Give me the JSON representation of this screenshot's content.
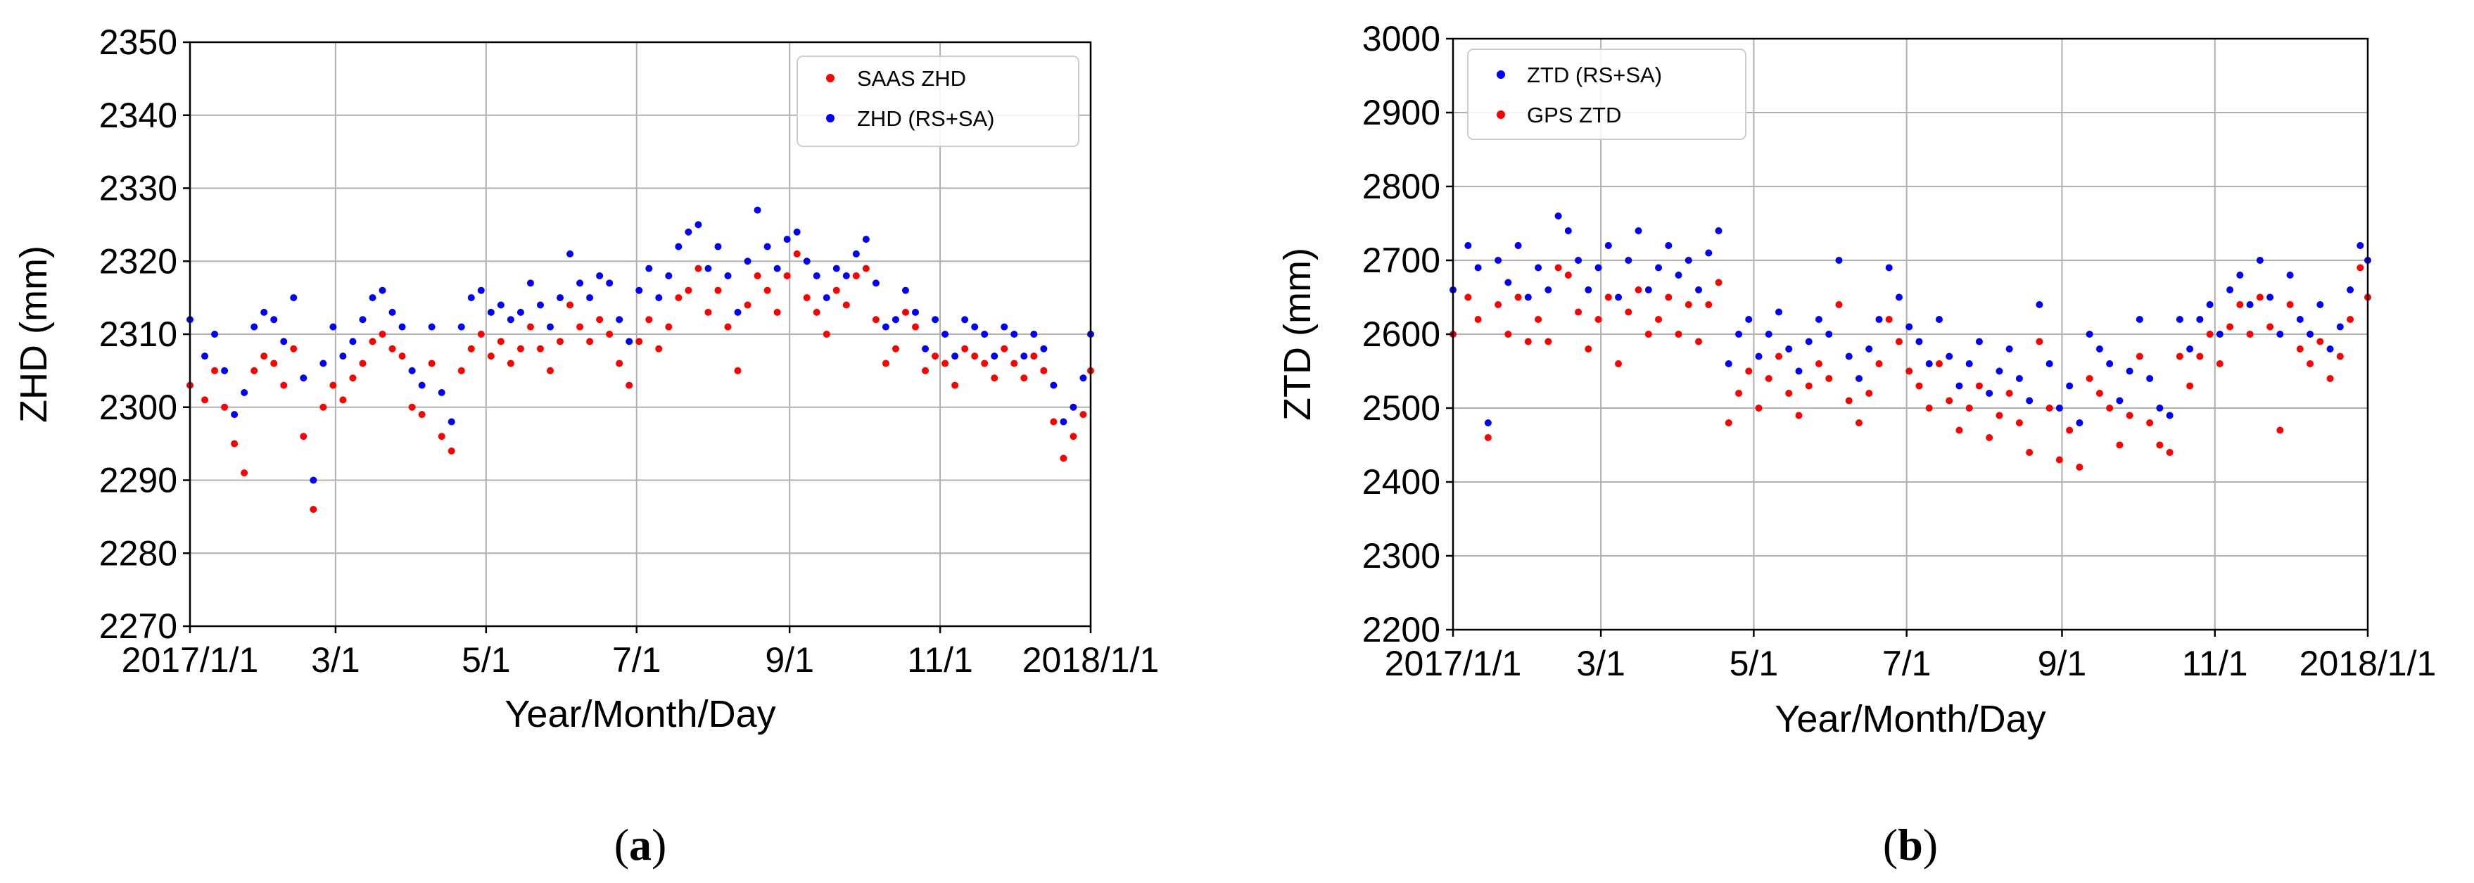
{
  "chart_data": [
    {
      "type": "scatter",
      "panel_label": "a",
      "xlabel": "Year/Month/Day",
      "ylabel": "ZHD (mm)",
      "xlim": [
        0,
        365
      ],
      "ylim": [
        2270,
        2350
      ],
      "x_ticks": [
        0,
        59,
        120,
        181,
        243,
        304,
        365
      ],
      "x_tick_labels": [
        "2017/1/1",
        "3/1",
        "5/1",
        "7/1",
        "9/1",
        "11/1",
        "2018/1/1"
      ],
      "y_ticks": [
        2270,
        2280,
        2290,
        2300,
        2310,
        2320,
        2330,
        2340,
        2350
      ],
      "y_tick_labels": [
        "2270",
        "2280",
        "2290",
        "2300",
        "2310",
        "2320",
        "2330",
        "2340",
        "2350"
      ],
      "grid": true,
      "legend_position": "top-right",
      "series": [
        {
          "name": "SAAS ZHD",
          "color": "#ff0000",
          "x": [
            0,
            6,
            10,
            14,
            18,
            22,
            26,
            30,
            34,
            38,
            42,
            46,
            50,
            54,
            58,
            62,
            66,
            70,
            74,
            78,
            82,
            86,
            90,
            94,
            98,
            102,
            106,
            110,
            114,
            118,
            122,
            126,
            130,
            134,
            138,
            142,
            146,
            150,
            154,
            158,
            162,
            166,
            170,
            174,
            178,
            182,
            186,
            190,
            194,
            198,
            202,
            206,
            210,
            214,
            218,
            222,
            226,
            230,
            234,
            238,
            242,
            246,
            250,
            254,
            258,
            262,
            266,
            270,
            274,
            278,
            282,
            286,
            290,
            294,
            298,
            302,
            306,
            310,
            314,
            318,
            322,
            326,
            330,
            334,
            338,
            342,
            346,
            350,
            354,
            358,
            362,
            365
          ],
          "y": [
            2303,
            2301,
            2305,
            2300,
            2295,
            2291,
            2305,
            2307,
            2306,
            2303,
            2308,
            2296,
            2286,
            2300,
            2303,
            2301,
            2304,
            2306,
            2309,
            2310,
            2308,
            2307,
            2300,
            2299,
            2306,
            2296,
            2294,
            2305,
            2308,
            2310,
            2307,
            2309,
            2306,
            2308,
            2311,
            2308,
            2305,
            2309,
            2314,
            2311,
            2309,
            2312,
            2310,
            2306,
            2303,
            2309,
            2312,
            2308,
            2311,
            2315,
            2316,
            2319,
            2313,
            2316,
            2311,
            2305,
            2314,
            2318,
            2316,
            2313,
            2318,
            2321,
            2315,
            2313,
            2310,
            2316,
            2314,
            2318,
            2319,
            2312,
            2306,
            2308,
            2313,
            2311,
            2305,
            2307,
            2306,
            2303,
            2308,
            2307,
            2306,
            2304,
            2308,
            2306,
            2304,
            2307,
            2305,
            2298,
            2293,
            2296,
            2299,
            2305
          ]
        },
        {
          "name": "ZHD (RS+SA)",
          "color": "#0000ff",
          "x": [
            0,
            6,
            10,
            14,
            18,
            22,
            26,
            30,
            34,
            38,
            42,
            46,
            50,
            54,
            58,
            62,
            66,
            70,
            74,
            78,
            82,
            86,
            90,
            94,
            98,
            102,
            106,
            110,
            114,
            118,
            122,
            126,
            130,
            134,
            138,
            142,
            146,
            150,
            154,
            158,
            162,
            166,
            170,
            174,
            178,
            182,
            186,
            190,
            194,
            198,
            202,
            206,
            210,
            214,
            218,
            222,
            226,
            230,
            234,
            238,
            242,
            246,
            250,
            254,
            258,
            262,
            266,
            270,
            274,
            278,
            282,
            286,
            290,
            294,
            298,
            302,
            306,
            310,
            314,
            318,
            322,
            326,
            330,
            334,
            338,
            342,
            346,
            350,
            354,
            358,
            362,
            365
          ],
          "y": [
            2312,
            2307,
            2310,
            2305,
            2299,
            2302,
            2311,
            2313,
            2312,
            2309,
            2315,
            2304,
            2290,
            2306,
            2311,
            2307,
            2309,
            2312,
            2315,
            2316,
            2313,
            2311,
            2305,
            2303,
            2311,
            2302,
            2298,
            2311,
            2315,
            2316,
            2313,
            2314,
            2312,
            2313,
            2317,
            2314,
            2311,
            2315,
            2321,
            2317,
            2315,
            2318,
            2317,
            2312,
            2309,
            2316,
            2319,
            2315,
            2318,
            2322,
            2324,
            2325,
            2319,
            2322,
            2318,
            2313,
            2320,
            2327,
            2322,
            2319,
            2323,
            2324,
            2320,
            2318,
            2315,
            2319,
            2318,
            2321,
            2323,
            2317,
            2311,
            2312,
            2316,
            2313,
            2308,
            2312,
            2310,
            2307,
            2312,
            2311,
            2310,
            2307,
            2311,
            2310,
            2307,
            2310,
            2308,
            2303,
            2298,
            2300,
            2304,
            2310
          ]
        }
      ]
    },
    {
      "type": "scatter",
      "panel_label": "b",
      "xlabel": "Year/Month/Day",
      "ylabel": "ZTD (mm)",
      "xlim": [
        0,
        365
      ],
      "ylim": [
        2200,
        3000
      ],
      "x_ticks": [
        0,
        59,
        120,
        181,
        243,
        304,
        365
      ],
      "x_tick_labels": [
        "2017/1/1",
        "3/1",
        "5/1",
        "7/1",
        "9/1",
        "11/1",
        "2018/1/1"
      ],
      "y_ticks": [
        2200,
        2300,
        2400,
        2500,
        2600,
        2700,
        2800,
        2900,
        3000
      ],
      "y_tick_labels": [
        "2200",
        "2300",
        "2400",
        "2500",
        "2600",
        "2700",
        "2800",
        "2900",
        "3000"
      ],
      "grid": true,
      "legend_position": "top-left",
      "series": [
        {
          "name": "ZTD (RS+SA)",
          "color": "#0000ff",
          "x": [
            0,
            6,
            10,
            14,
            18,
            22,
            26,
            30,
            34,
            38,
            42,
            46,
            50,
            54,
            58,
            62,
            66,
            70,
            74,
            78,
            82,
            86,
            90,
            94,
            98,
            102,
            106,
            110,
            114,
            118,
            122,
            126,
            130,
            134,
            138,
            142,
            146,
            150,
            154,
            158,
            162,
            166,
            170,
            174,
            178,
            182,
            186,
            190,
            194,
            198,
            202,
            206,
            210,
            214,
            218,
            222,
            226,
            230,
            234,
            238,
            242,
            246,
            250,
            254,
            258,
            262,
            266,
            270,
            274,
            278,
            282,
            286,
            290,
            294,
            298,
            302,
            306,
            310,
            314,
            318,
            322,
            326,
            330,
            334,
            338,
            342,
            346,
            350,
            354,
            358,
            362,
            365
          ],
          "y": [
            2660,
            2720,
            2690,
            2480,
            2700,
            2670,
            2720,
            2650,
            2690,
            2660,
            2760,
            2740,
            2700,
            2660,
            2690,
            2720,
            2650,
            2700,
            2740,
            2660,
            2690,
            2720,
            2680,
            2700,
            2660,
            2710,
            2740,
            2560,
            2600,
            2620,
            2570,
            2600,
            2630,
            2580,
            2550,
            2590,
            2620,
            2600,
            2700,
            2570,
            2540,
            2580,
            2620,
            2690,
            2650,
            2610,
            2590,
            2560,
            2620,
            2570,
            2530,
            2560,
            2590,
            2520,
            2550,
            2580,
            2540,
            2510,
            2640,
            2560,
            2500,
            2530,
            2480,
            2600,
            2580,
            2560,
            2510,
            2550,
            2620,
            2540,
            2500,
            2490,
            2620,
            2580,
            2620,
            2640,
            2600,
            2660,
            2680,
            2640,
            2700,
            2650,
            2600,
            2680,
            2620,
            2600,
            2640,
            2580,
            2610,
            2660,
            2720,
            2700
          ]
        },
        {
          "name": "GPS ZTD",
          "color": "#ff0000",
          "x": [
            0,
            6,
            10,
            14,
            18,
            22,
            26,
            30,
            34,
            38,
            42,
            46,
            50,
            54,
            58,
            62,
            66,
            70,
            74,
            78,
            82,
            86,
            90,
            94,
            98,
            102,
            106,
            110,
            114,
            118,
            122,
            126,
            130,
            134,
            138,
            142,
            146,
            150,
            154,
            158,
            162,
            166,
            170,
            174,
            178,
            182,
            186,
            190,
            194,
            198,
            202,
            206,
            210,
            214,
            218,
            222,
            226,
            230,
            234,
            238,
            242,
            246,
            250,
            254,
            258,
            262,
            266,
            270,
            274,
            278,
            282,
            286,
            290,
            294,
            298,
            302,
            306,
            310,
            314,
            318,
            322,
            326,
            330,
            334,
            338,
            342,
            346,
            350,
            354,
            358,
            362,
            365
          ],
          "y": [
            2600,
            2650,
            2620,
            2460,
            2640,
            2600,
            2650,
            2590,
            2620,
            2590,
            2690,
            2680,
            2630,
            2580,
            2620,
            2650,
            2560,
            2630,
            2660,
            2600,
            2620,
            2650,
            2600,
            2640,
            2590,
            2640,
            2670,
            2480,
            2520,
            2550,
            2500,
            2540,
            2570,
            2520,
            2490,
            2530,
            2560,
            2540,
            2640,
            2510,
            2480,
            2520,
            2560,
            2620,
            2590,
            2550,
            2530,
            2500,
            2560,
            2510,
            2470,
            2500,
            2530,
            2460,
            2490,
            2520,
            2480,
            2440,
            2590,
            2500,
            2430,
            2470,
            2420,
            2540,
            2520,
            2500,
            2450,
            2490,
            2570,
            2480,
            2450,
            2440,
            2570,
            2530,
            2570,
            2600,
            2560,
            2610,
            2640,
            2600,
            2650,
            2610,
            2470,
            2640,
            2580,
            2560,
            2590,
            2540,
            2570,
            2620,
            2690,
            2650
          ]
        }
      ]
    }
  ]
}
